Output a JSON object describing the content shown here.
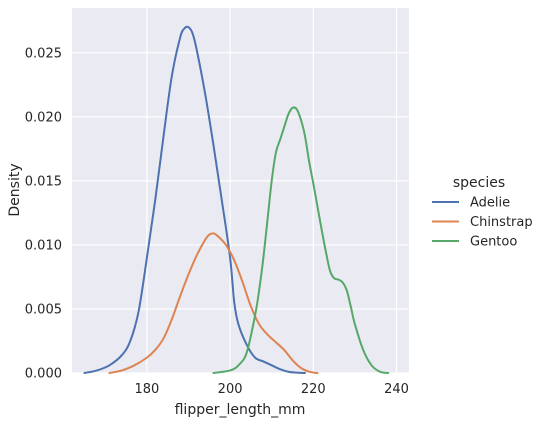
{
  "chart_data": {
    "type": "line",
    "subtype": "kde",
    "title": "",
    "xlabel": "flipper_length_mm",
    "ylabel": "Density",
    "xlim": [
      162,
      243
    ],
    "ylim": [
      0,
      0.0285
    ],
    "xticks": [
      180,
      200,
      220,
      240
    ],
    "yticks": [
      0.0,
      0.005,
      0.01,
      0.015,
      0.02,
      0.025
    ],
    "ytick_labels": [
      "0.000",
      "0.005",
      "0.010",
      "0.015",
      "0.020",
      "0.025"
    ],
    "grid": true,
    "style": "darkgrid",
    "legend": {
      "title": "species",
      "position": "right-outside"
    },
    "series": [
      {
        "name": "Adelie",
        "color": "#4c72b0",
        "x": [
          165,
          168,
          171,
          174,
          176,
          178,
          180,
          182,
          184,
          186,
          188,
          189,
          190,
          191,
          192,
          194,
          196,
          198,
          200,
          201,
          202,
          204,
          206,
          208,
          210,
          212,
          214,
          216,
          218
        ],
        "y": [
          0.0,
          0.0002,
          0.0006,
          0.0014,
          0.0025,
          0.0048,
          0.009,
          0.0135,
          0.0185,
          0.0232,
          0.0262,
          0.0269,
          0.027,
          0.0265,
          0.0252,
          0.0218,
          0.0178,
          0.0135,
          0.009,
          0.0055,
          0.0038,
          0.0022,
          0.0012,
          0.0009,
          0.0006,
          0.0003,
          0.0001,
          3e-05,
          0.0
        ]
      },
      {
        "name": "Chinstrap",
        "color": "#dd8452",
        "x": [
          171,
          174,
          177,
          180,
          182,
          184,
          186,
          188,
          190,
          192,
          194,
          195,
          196,
          197,
          199,
          201,
          203,
          205,
          207,
          209,
          211,
          213,
          215,
          217,
          219,
          221
        ],
        "y": [
          0.0,
          0.0002,
          0.0006,
          0.0012,
          0.0018,
          0.0027,
          0.0042,
          0.006,
          0.0077,
          0.0092,
          0.0104,
          0.0108,
          0.0109,
          0.0107,
          0.01,
          0.0088,
          0.0071,
          0.0052,
          0.0038,
          0.003,
          0.0024,
          0.0018,
          0.001,
          0.0004,
          0.0001,
          0.0
        ]
      },
      {
        "name": "Gentoo",
        "color": "#55a868",
        "x": [
          196,
          200,
          202,
          204,
          206,
          207,
          208,
          209,
          210,
          211,
          212,
          213,
          214,
          215,
          216,
          217,
          218,
          219,
          220,
          221,
          222,
          223,
          224,
          225,
          226,
          227,
          228,
          229,
          230,
          232,
          234,
          236,
          238
        ],
        "y": [
          0.0,
          0.0002,
          0.0006,
          0.0016,
          0.0045,
          0.0065,
          0.009,
          0.012,
          0.015,
          0.0172,
          0.0182,
          0.0192,
          0.0202,
          0.0207,
          0.0206,
          0.0198,
          0.0185,
          0.0165,
          0.0148,
          0.013,
          0.0112,
          0.0095,
          0.008,
          0.0074,
          0.0073,
          0.0071,
          0.0065,
          0.0052,
          0.0038,
          0.0018,
          0.0006,
          0.0001,
          0.0
        ]
      }
    ]
  }
}
